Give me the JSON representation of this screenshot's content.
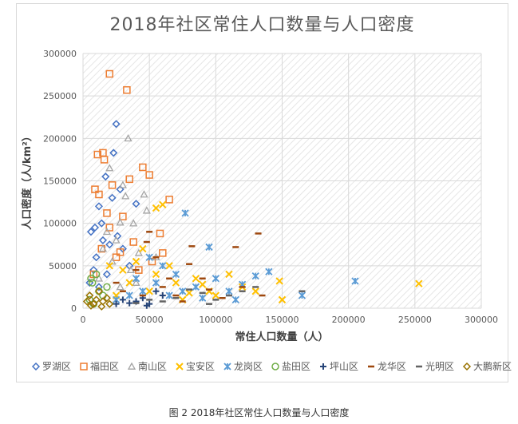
{
  "chart_data": {
    "type": "scatter",
    "title": "2018年社区常住人口数量与人口密度",
    "xlabel": "常住人口数量（人）",
    "ylabel": "人口密度（人/km²）",
    "xlim": [
      0,
      300000
    ],
    "ylim": [
      0,
      300000
    ],
    "x_ticks": [
      "0",
      "50000",
      "100000",
      "150000",
      "200000",
      "250000",
      "300000"
    ],
    "y_ticks": [
      "0",
      "50000",
      "100000",
      "150000",
      "200000",
      "250000",
      "300000"
    ],
    "grid": true,
    "legend": "bottom",
    "series": [
      {
        "name": "罗湖区",
        "marker": "diamond",
        "color": "#4472c4",
        "points": [
          [
            25000,
            217000
          ],
          [
            23000,
            183000
          ],
          [
            17000,
            155000
          ],
          [
            12000,
            120000
          ],
          [
            9000,
            95000
          ],
          [
            6000,
            90000
          ],
          [
            15000,
            80000
          ],
          [
            20000,
            75000
          ],
          [
            30000,
            70000
          ],
          [
            10000,
            60000
          ],
          [
            8000,
            45000
          ],
          [
            18000,
            40000
          ],
          [
            22000,
            130000
          ],
          [
            28000,
            140000
          ],
          [
            14000,
            100000
          ],
          [
            40000,
            123000
          ],
          [
            5000,
            30000
          ],
          [
            12000,
            25000
          ],
          [
            35000,
            50000
          ],
          [
            26000,
            85000
          ]
        ]
      },
      {
        "name": "福田区",
        "marker": "square",
        "color": "#ed7d31",
        "points": [
          [
            20000,
            276000
          ],
          [
            33000,
            257000
          ],
          [
            15000,
            183000
          ],
          [
            11000,
            181000
          ],
          [
            16000,
            175000
          ],
          [
            45000,
            166000
          ],
          [
            50000,
            157000
          ],
          [
            35000,
            152000
          ],
          [
            9000,
            140000
          ],
          [
            12000,
            134000
          ],
          [
            22000,
            145000
          ],
          [
            65000,
            128000
          ],
          [
            30000,
            108000
          ],
          [
            18000,
            112000
          ],
          [
            58000,
            88000
          ],
          [
            38000,
            78000
          ],
          [
            28000,
            66000
          ],
          [
            25000,
            60000
          ],
          [
            60000,
            65000
          ],
          [
            52000,
            55000
          ],
          [
            8000,
            40000
          ],
          [
            14000,
            70000
          ],
          [
            20000,
            95000
          ],
          [
            42000,
            45000
          ]
        ]
      },
      {
        "name": "南山区",
        "marker": "triangle",
        "color": "#a5a5a5",
        "points": [
          [
            34000,
            200000
          ],
          [
            20000,
            165000
          ],
          [
            30000,
            145000
          ],
          [
            46000,
            134000
          ],
          [
            32000,
            132000
          ],
          [
            48000,
            115000
          ],
          [
            28000,
            101000
          ],
          [
            38000,
            100000
          ],
          [
            18000,
            90000
          ],
          [
            25000,
            80000
          ],
          [
            15000,
            70000
          ],
          [
            42000,
            65000
          ],
          [
            22000,
            55000
          ],
          [
            36000,
            45000
          ],
          [
            12000,
            35000
          ],
          [
            55000,
            60000
          ],
          [
            28000,
            25000
          ],
          [
            40000,
            30000
          ]
        ]
      },
      {
        "name": "宝安区",
        "marker": "x",
        "color": "#ffc000",
        "points": [
          [
            253000,
            29000
          ],
          [
            148000,
            32000
          ],
          [
            150000,
            10000
          ],
          [
            110000,
            40000
          ],
          [
            60000,
            122000
          ],
          [
            55000,
            118000
          ],
          [
            40000,
            55000
          ],
          [
            30000,
            45000
          ],
          [
            85000,
            35000
          ],
          [
            70000,
            30000
          ],
          [
            95000,
            20000
          ],
          [
            120000,
            25000
          ],
          [
            50000,
            20000
          ],
          [
            25000,
            15000
          ],
          [
            65000,
            50000
          ],
          [
            45000,
            70000
          ],
          [
            100000,
            15000
          ],
          [
            75000,
            10000
          ],
          [
            35000,
            30000
          ],
          [
            130000,
            20000
          ],
          [
            55000,
            40000
          ],
          [
            20000,
            50000
          ],
          [
            80000,
            18000
          ],
          [
            90000,
            28000
          ]
        ]
      },
      {
        "name": "龙岗区",
        "marker": "star",
        "color": "#5b9bd5",
        "points": [
          [
            205000,
            32000
          ],
          [
            165000,
            15000
          ],
          [
            140000,
            43000
          ],
          [
            130000,
            38000
          ],
          [
            95000,
            72000
          ],
          [
            77000,
            112000
          ],
          [
            120000,
            28000
          ],
          [
            110000,
            20000
          ],
          [
            100000,
            35000
          ],
          [
            85000,
            25000
          ],
          [
            70000,
            40000
          ],
          [
            60000,
            50000
          ],
          [
            55000,
            30000
          ],
          [
            45000,
            20000
          ],
          [
            35000,
            15000
          ],
          [
            25000,
            10000
          ],
          [
            65000,
            15000
          ],
          [
            90000,
            12000
          ],
          [
            50000,
            60000
          ],
          [
            40000,
            35000
          ],
          [
            115000,
            10000
          ],
          [
            75000,
            20000
          ]
        ]
      },
      {
        "name": "盐田区",
        "marker": "circle",
        "color": "#70ad47",
        "points": [
          [
            10000,
            40000
          ],
          [
            7000,
            30000
          ],
          [
            12000,
            20000
          ],
          [
            5000,
            10000
          ],
          [
            15000,
            15000
          ],
          [
            8000,
            5000
          ],
          [
            18000,
            25000
          ],
          [
            6000,
            35000
          ]
        ]
      },
      {
        "name": "坪山区",
        "marker": "plus",
        "color": "#264478",
        "points": [
          [
            50000,
            5000
          ],
          [
            40000,
            8000
          ],
          [
            45000,
            12000
          ],
          [
            30000,
            10000
          ],
          [
            60000,
            15000
          ],
          [
            35000,
            6000
          ],
          [
            55000,
            20000
          ],
          [
            25000,
            5000
          ],
          [
            48000,
            3000
          ]
        ]
      },
      {
        "name": "龙华区",
        "marker": "dash",
        "color": "#9e480e",
        "points": [
          [
            132000,
            88000
          ],
          [
            115000,
            72000
          ],
          [
            82000,
            73000
          ],
          [
            80000,
            52000
          ],
          [
            65000,
            35000
          ],
          [
            50000,
            90000
          ],
          [
            48000,
            78000
          ],
          [
            95000,
            22000
          ],
          [
            60000,
            25000
          ],
          [
            40000,
            45000
          ],
          [
            120000,
            25000
          ],
          [
            105000,
            12000
          ],
          [
            70000,
            15000
          ],
          [
            55000,
            60000
          ],
          [
            30000,
            20000
          ],
          [
            90000,
            35000
          ],
          [
            45000,
            15000
          ],
          [
            75000,
            8000
          ],
          [
            135000,
            15000
          ],
          [
            25000,
            30000
          ]
        ]
      },
      {
        "name": "光明区",
        "marker": "dash",
        "color": "#636363",
        "points": [
          [
            165000,
            20000
          ],
          [
            130000,
            25000
          ],
          [
            110000,
            15000
          ],
          [
            100000,
            10000
          ],
          [
            90000,
            18000
          ],
          [
            70000,
            12000
          ],
          [
            60000,
            8000
          ],
          [
            80000,
            22000
          ],
          [
            50000,
            10000
          ],
          [
            120000,
            20000
          ],
          [
            40000,
            6000
          ],
          [
            95000,
            5000
          ]
        ]
      },
      {
        "name": "大鹏新区",
        "marker": "diamond",
        "color": "#997300",
        "points": [
          [
            8000,
            5000
          ],
          [
            10000,
            10000
          ],
          [
            5000,
            15000
          ],
          [
            15000,
            8000
          ],
          [
            12000,
            20000
          ],
          [
            6000,
            3000
          ],
          [
            18000,
            12000
          ],
          [
            3000,
            8000
          ],
          [
            20000,
            5000
          ],
          [
            14000,
            2000
          ]
        ]
      }
    ]
  },
  "caption": "图 2 2018年社区常住人口数量与人口密度"
}
